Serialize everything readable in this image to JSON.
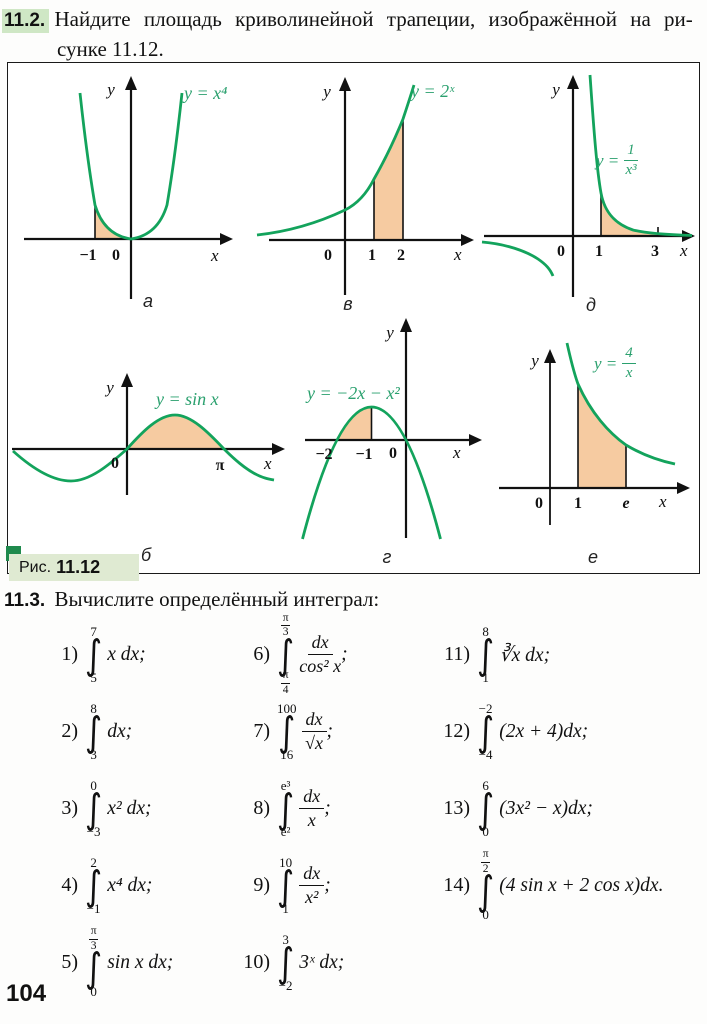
{
  "problem_11_2": {
    "number": "11.2.",
    "text_line1": "Найдите площадь криволинейной трапеции, изображённой на ри-",
    "text_line2": "сунке 11.12."
  },
  "figure": {
    "caption_label": "Рис.",
    "caption_number": "11.12",
    "colors": {
      "curve_green": "#13a35c",
      "label_green": "#2aa06e",
      "region_fill": "#f6cba1",
      "caption_bg": "#dfead2",
      "caption_square": "#1f8a4d",
      "number_highlight": "#cfe7c5"
    },
    "graphs": [
      {
        "label": "а",
        "func": "y = x⁴",
        "x": "x",
        "y": "y",
        "t0": "−1",
        "t1": "0"
      },
      {
        "label": "в",
        "func": "y = 2ˣ",
        "x": "x",
        "y": "y",
        "t0": "0",
        "t1": "1",
        "t2": "2"
      },
      {
        "label": "д",
        "func_pre": "y =",
        "func_num": "1",
        "func_den": "x³",
        "x": "x",
        "y": "y",
        "t0": "0",
        "t1": "1",
        "t2": "3"
      },
      {
        "label": "б",
        "func": "y = sin x",
        "x": "x",
        "y": "y",
        "t0": "0",
        "t1": "π"
      },
      {
        "label": "г",
        "func": "y = −2x − x²",
        "x": "x",
        "y": "y",
        "t0": "−2",
        "t1": "−1",
        "t2": "0"
      },
      {
        "label": "е",
        "func_pre": "y =",
        "func_num": "4",
        "func_den": "x",
        "x": "x",
        "y": "y",
        "t0": "0",
        "t1": "1",
        "t2": "e"
      }
    ]
  },
  "problem_11_3": {
    "number": "11.3.",
    "title": "Вычислите определённый интеграл:",
    "integral_sign": "∫",
    "items": [
      {
        "label": "1)",
        "col": 1,
        "row": 1,
        "upper": {
          "text": "7"
        },
        "lower": {
          "text": "5"
        },
        "body": [
          {
            "text": "x dx;"
          }
        ]
      },
      {
        "label": "2)",
        "col": 1,
        "row": 2,
        "upper": {
          "text": "8"
        },
        "lower": {
          "text": "3"
        },
        "body": [
          {
            "text": "dx;"
          }
        ]
      },
      {
        "label": "3)",
        "col": 1,
        "row": 3,
        "upper": {
          "text": "0"
        },
        "lower": {
          "text": "−3"
        },
        "body": [
          {
            "text": "x² dx;"
          }
        ]
      },
      {
        "label": "4)",
        "col": 1,
        "row": 4,
        "upper": {
          "text": "2"
        },
        "lower": {
          "text": "−1"
        },
        "body": [
          {
            "text": "x⁴ dx;"
          }
        ]
      },
      {
        "label": "5)",
        "col": 1,
        "row": 5,
        "upper": {
          "frac": [
            "π",
            "3"
          ]
        },
        "lower": {
          "text": "0"
        },
        "body": [
          {
            "text": "sin x dx;"
          }
        ]
      },
      {
        "label": "6)",
        "col": 2,
        "row": 1,
        "upper": {
          "frac": [
            "π",
            "3"
          ]
        },
        "lower": {
          "frac": [
            "π",
            "4"
          ]
        },
        "body": [
          {
            "frac": [
              "dx",
              "cos² x"
            ]
          },
          {
            "text": ";"
          }
        ]
      },
      {
        "label": "7)",
        "col": 2,
        "row": 2,
        "upper": {
          "text": "100"
        },
        "lower": {
          "text": "16"
        },
        "body": [
          {
            "frac": [
              "dx",
              "√x"
            ]
          },
          {
            "text": ";"
          }
        ]
      },
      {
        "label": "8)",
        "col": 2,
        "row": 3,
        "upper": {
          "text": "e³"
        },
        "lower": {
          "text": "e²"
        },
        "body": [
          {
            "frac": [
              "dx",
              "x"
            ]
          },
          {
            "text": ";"
          }
        ]
      },
      {
        "label": "9)",
        "col": 2,
        "row": 4,
        "upper": {
          "text": "10"
        },
        "lower": {
          "text": "1"
        },
        "body": [
          {
            "frac": [
              "dx",
              "x²"
            ]
          },
          {
            "text": ";"
          }
        ]
      },
      {
        "label": "10)",
        "col": 2,
        "row": 5,
        "upper": {
          "text": "3"
        },
        "lower": {
          "text": "−2"
        },
        "body": [
          {
            "text": "3ˣ dx;"
          }
        ]
      },
      {
        "label": "11)",
        "col": 3,
        "row": 1,
        "upper": {
          "text": "8"
        },
        "lower": {
          "text": "1"
        },
        "body": [
          {
            "text": "∛x dx;"
          }
        ]
      },
      {
        "label": "12)",
        "col": 3,
        "row": 2,
        "upper": {
          "text": "−2"
        },
        "lower": {
          "text": "−4"
        },
        "body": [
          {
            "text": "(2x + 4)dx;"
          }
        ]
      },
      {
        "label": "13)",
        "col": 3,
        "row": 3,
        "upper": {
          "text": "6"
        },
        "lower": {
          "text": "0"
        },
        "body": [
          {
            "text": "(3x² − x)dx;"
          }
        ]
      },
      {
        "label": "14)",
        "col": 3,
        "row": 4,
        "upper": {
          "frac": [
            "π",
            "2"
          ]
        },
        "lower": {
          "text": "0"
        },
        "body": [
          {
            "text": "(4 sin x + 2 cos x)dx."
          }
        ]
      }
    ]
  },
  "page": {
    "number": "104"
  }
}
